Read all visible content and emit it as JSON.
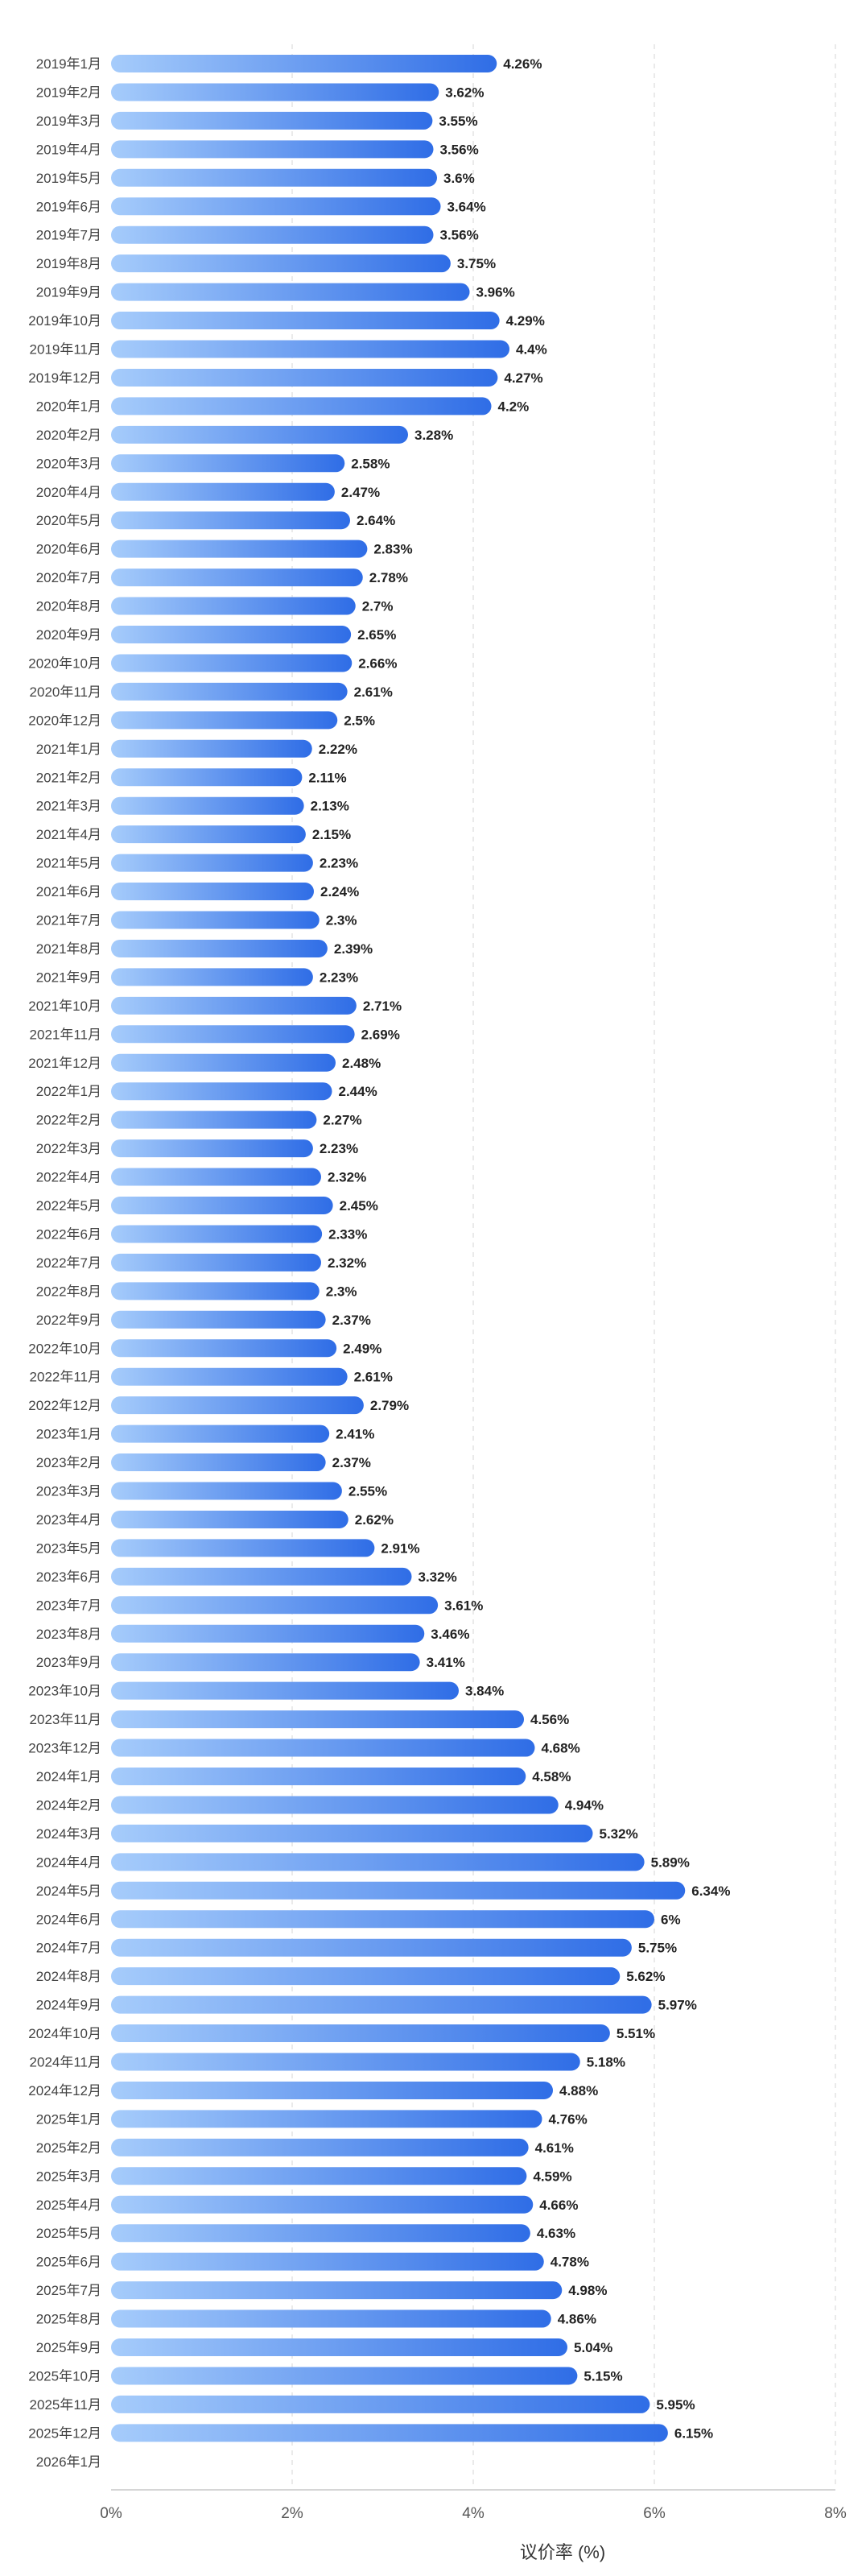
{
  "chart_data": {
    "type": "bar",
    "orientation": "horizontal",
    "xlabel": "议价率 (%)",
    "xlim": [
      0,
      8
    ],
    "x_ticks": [
      "0%",
      "2%",
      "4%",
      "6%",
      "8%"
    ],
    "grid": "vertical dashed",
    "value_suffix": "%",
    "colors": {
      "bar_start": "#a6ccfb",
      "bar_end": "#2f6de6",
      "grid": "#e3e3e3"
    },
    "categories": [
      "2019年1月",
      "2019年2月",
      "2019年3月",
      "2019年4月",
      "2019年5月",
      "2019年6月",
      "2019年7月",
      "2019年8月",
      "2019年9月",
      "2019年10月",
      "2019年11月",
      "2019年12月",
      "2020年1月",
      "2020年2月",
      "2020年3月",
      "2020年4月",
      "2020年5月",
      "2020年6月",
      "2020年7月",
      "2020年8月",
      "2020年9月",
      "2020年10月",
      "2020年11月",
      "2020年12月",
      "2021年1月",
      "2021年2月",
      "2021年3月",
      "2021年4月",
      "2021年5月",
      "2021年6月",
      "2021年7月",
      "2021年8月",
      "2021年9月",
      "2021年10月",
      "2021年11月",
      "2021年12月",
      "2022年1月",
      "2022年2月",
      "2022年3月",
      "2022年4月",
      "2022年5月",
      "2022年6月",
      "2022年7月",
      "2022年8月",
      "2022年9月",
      "2022年10月",
      "2022年11月",
      "2022年12月",
      "2023年1月",
      "2023年2月",
      "2023年3月",
      "2023年4月",
      "2023年5月",
      "2023年6月",
      "2023年7月",
      "2023年8月",
      "2023年9月",
      "2023年10月",
      "2023年11月",
      "2023年12月",
      "2024年1月",
      "2024年2月",
      "2024年3月",
      "2024年4月",
      "2024年5月",
      "2024年6月",
      "2024年7月",
      "2024年8月",
      "2024年9月",
      "2024年10月",
      "2024年11月",
      "2024年12月",
      "2025年1月",
      "2025年2月",
      "2025年3月",
      "2025年4月",
      "2025年5月",
      "2025年6月",
      "2025年7月",
      "2025年8月",
      "2025年9月",
      "2025年10月",
      "2025年11月",
      "2025年12月",
      "2026年1月"
    ],
    "values": [
      4.26,
      3.62,
      3.55,
      3.56,
      3.6,
      3.64,
      3.56,
      3.75,
      3.96,
      4.29,
      4.4,
      4.27,
      4.2,
      3.28,
      2.58,
      2.47,
      2.64,
      2.83,
      2.78,
      2.7,
      2.65,
      2.66,
      2.61,
      2.5,
      2.22,
      2.11,
      2.13,
      2.15,
      2.23,
      2.24,
      2.3,
      2.39,
      2.23,
      2.71,
      2.69,
      2.48,
      2.44,
      2.27,
      2.23,
      2.32,
      2.45,
      2.33,
      2.32,
      2.3,
      2.37,
      2.49,
      2.61,
      2.79,
      2.41,
      2.37,
      2.55,
      2.62,
      2.91,
      3.32,
      3.61,
      3.46,
      3.41,
      3.84,
      4.56,
      4.68,
      4.58,
      4.94,
      5.32,
      5.89,
      6.34,
      6,
      5.75,
      5.62,
      5.97,
      5.51,
      5.18,
      4.88,
      4.76,
      4.61,
      4.59,
      4.66,
      4.63,
      4.78,
      4.98,
      4.86,
      5.04,
      5.15,
      5.95,
      6.15,
      null
    ]
  }
}
